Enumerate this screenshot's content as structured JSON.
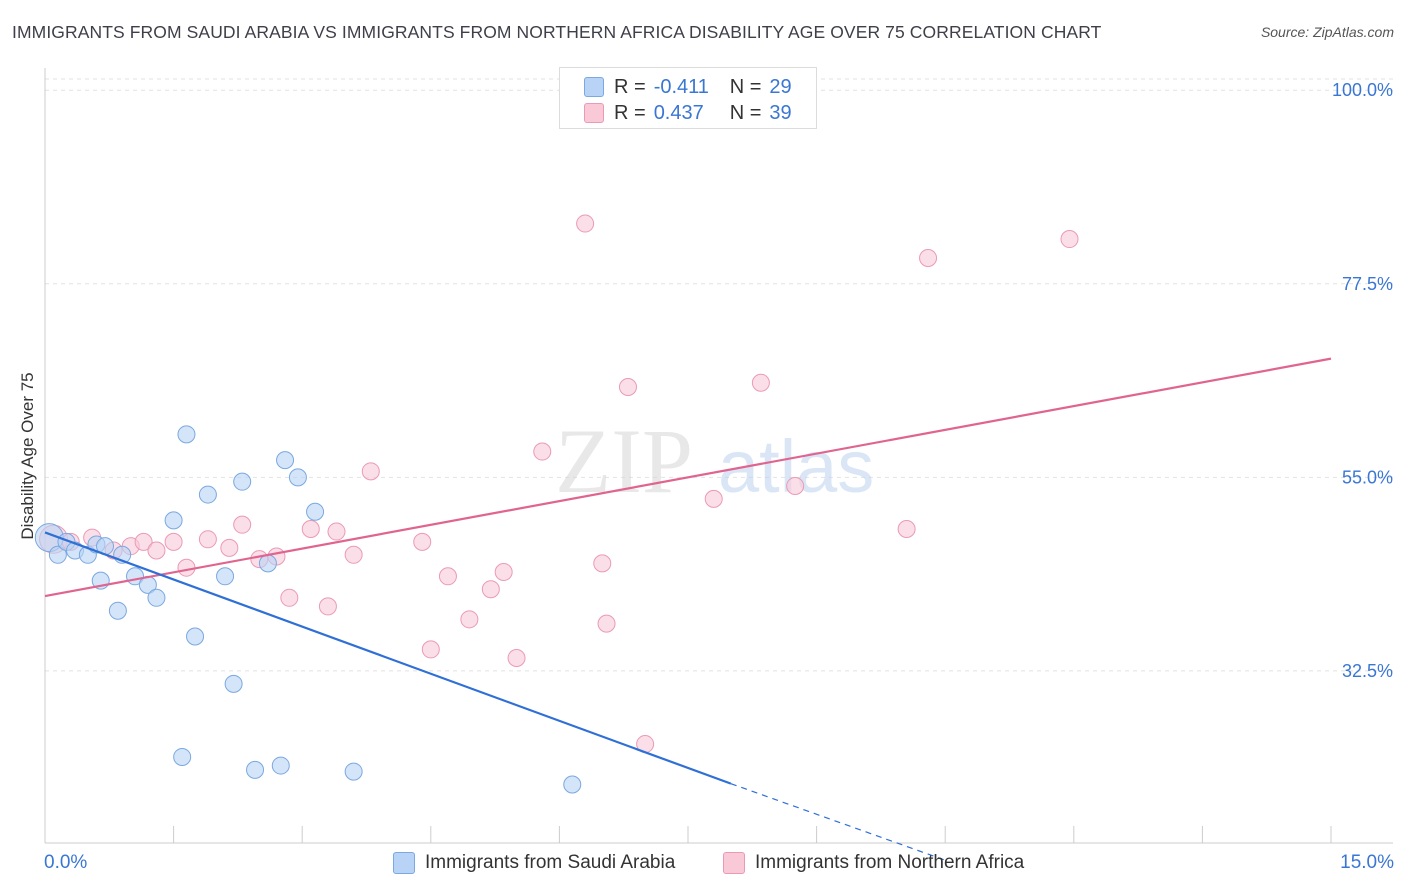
{
  "title": "IMMIGRANTS FROM SAUDI ARABIA VS IMMIGRANTS FROM NORTHERN AFRICA DISABILITY AGE OVER 75 CORRELATION CHART",
  "source": "Source: ZipAtlas.com",
  "watermark": {
    "zip": "ZIP",
    "atlas": "atlas"
  },
  "legend": {
    "series1": {
      "r_label": "R =",
      "r_value": "-0.411",
      "n_label": "N =",
      "n_value": "29",
      "name": "Immigrants from Saudi Arabia"
    },
    "series2": {
      "r_label": "R =",
      "r_value": "0.437",
      "n_label": "N =",
      "n_value": "39",
      "name": "Immigrants from Northern Africa"
    }
  },
  "colors": {
    "blue_fill": "#b8d3f5",
    "blue_stroke": "#7aa8e0",
    "blue_line": "#2f6fd6",
    "pink_fill": "#f9c9d8",
    "pink_stroke": "#eb9ab4",
    "pink_line": "#e0648f",
    "axis_label": "#3a76d3"
  },
  "chart_data": {
    "type": "scatter",
    "title": "IMMIGRANTS FROM SAUDI ARABIA VS IMMIGRANTS FROM NORTHERN AFRICA DISABILITY AGE OVER 75 CORRELATION CHART",
    "xlabel": "",
    "ylabel": "Disability Age Over 75",
    "xlim": [
      0,
      15
    ],
    "ylim": [
      12.5,
      102
    ],
    "x_tick_labels": [
      "0.0%",
      "15.0%"
    ],
    "y_ticks": [
      32.5,
      55.0,
      77.5,
      100.0
    ],
    "y_tick_labels": [
      "32.5%",
      "55.0%",
      "77.5%",
      "100.0%"
    ],
    "grid": true,
    "series": [
      {
        "name": "Immigrants from Saudi Arabia",
        "color": "blue",
        "points": [
          [
            0.05,
            48.0
          ],
          [
            0.15,
            46.0
          ],
          [
            0.25,
            47.5
          ],
          [
            0.35,
            46.5
          ],
          [
            0.5,
            46.0
          ],
          [
            0.6,
            47.2
          ],
          [
            0.7,
            47.0
          ],
          [
            0.65,
            43.0
          ],
          [
            0.9,
            46.0
          ],
          [
            1.05,
            43.5
          ],
          [
            0.85,
            39.5
          ],
          [
            1.2,
            42.5
          ],
          [
            1.3,
            41.0
          ],
          [
            1.5,
            50.0
          ],
          [
            1.65,
            60.0
          ],
          [
            1.9,
            53.0
          ],
          [
            1.75,
            36.5
          ],
          [
            2.1,
            43.5
          ],
          [
            2.3,
            54.5
          ],
          [
            2.2,
            31.0
          ],
          [
            2.6,
            45.0
          ],
          [
            2.8,
            57.0
          ],
          [
            2.95,
            55.0
          ],
          [
            3.15,
            51.0
          ],
          [
            1.6,
            22.5
          ],
          [
            2.45,
            21.0
          ],
          [
            2.75,
            21.5
          ],
          [
            3.6,
            20.8
          ],
          [
            6.15,
            19.3
          ]
        ],
        "trend": {
          "x_start": 0.0,
          "y_start": 48.6,
          "x_end": 8.0,
          "y_end": 19.4,
          "dashed_to_x": 10.5,
          "dashed_to_y": 10.5
        }
      },
      {
        "name": "Immigrants from Northern Africa",
        "color": "pink",
        "points": [
          [
            0.1,
            47.8
          ],
          [
            0.3,
            47.5
          ],
          [
            0.55,
            48.0
          ],
          [
            0.8,
            46.5
          ],
          [
            1.0,
            47.0
          ],
          [
            1.15,
            47.5
          ],
          [
            1.3,
            46.5
          ],
          [
            1.5,
            47.5
          ],
          [
            1.65,
            44.5
          ],
          [
            1.9,
            47.8
          ],
          [
            2.15,
            46.8
          ],
          [
            2.3,
            49.5
          ],
          [
            2.5,
            45.5
          ],
          [
            2.7,
            45.8
          ],
          [
            2.85,
            41.0
          ],
          [
            3.1,
            49.0
          ],
          [
            3.3,
            40.0
          ],
          [
            3.4,
            48.7
          ],
          [
            3.6,
            46.0
          ],
          [
            3.8,
            55.7
          ],
          [
            4.4,
            47.5
          ],
          [
            4.5,
            35.0
          ],
          [
            4.7,
            43.5
          ],
          [
            4.95,
            38.5
          ],
          [
            5.2,
            42.0
          ],
          [
            5.35,
            44.0
          ],
          [
            5.5,
            34.0
          ],
          [
            5.8,
            58.0
          ],
          [
            6.3,
            84.5
          ],
          [
            6.5,
            45.0
          ],
          [
            6.55,
            38.0
          ],
          [
            6.8,
            65.5
          ],
          [
            7.0,
            24.0
          ],
          [
            7.8,
            52.5
          ],
          [
            8.35,
            66.0
          ],
          [
            8.75,
            54.0
          ],
          [
            10.05,
            49.0
          ],
          [
            10.3,
            80.5
          ],
          [
            11.95,
            82.7
          ]
        ],
        "trend": {
          "x_start": 0.0,
          "y_start": 41.2,
          "x_end": 15.0,
          "y_end": 68.8
        }
      }
    ]
  }
}
